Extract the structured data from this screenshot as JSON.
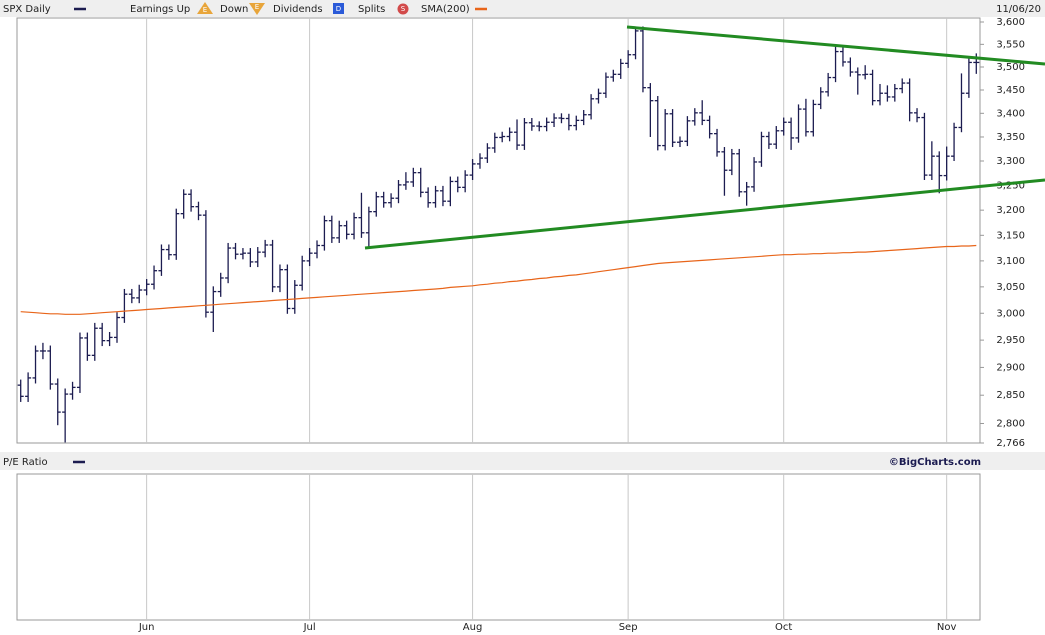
{
  "chart_data": {
    "type": "ohlc",
    "date": "11/06/20",
    "source": "©BigCharts.com",
    "lower_panel": {
      "title": "P/E Ratio"
    },
    "legend": [
      {
        "label": "Earnings Up",
        "icon": "E"
      },
      {
        "label": "Down",
        "icon": "E"
      },
      {
        "label": "Dividends",
        "icon": "D"
      },
      {
        "label": "Splits",
        "icon": "S"
      }
    ],
    "log_scale": true,
    "ylim": [
      2766,
      3600
    ],
    "yticks": [
      {
        "value": 2766,
        "label": "2,766"
      },
      {
        "value": 2800,
        "label": "2,800"
      },
      {
        "value": 2850,
        "label": "2,850"
      },
      {
        "value": 2900,
        "label": "2,900"
      },
      {
        "value": 2950,
        "label": "2,950"
      },
      {
        "value": 3000,
        "label": "3,000"
      },
      {
        "value": 3050,
        "label": "3,050"
      },
      {
        "value": 3100,
        "label": "3,100"
      },
      {
        "value": 3150,
        "label": "3,150"
      },
      {
        "value": 3200,
        "label": "3,200"
      },
      {
        "value": 3250,
        "label": "3,250"
      },
      {
        "value": 3300,
        "label": "3,300"
      },
      {
        "value": 3350,
        "label": "3,350"
      },
      {
        "value": 3400,
        "label": "3,400"
      },
      {
        "value": 3450,
        "label": "3,450"
      },
      {
        "value": 3500,
        "label": "3,500"
      },
      {
        "value": 3550,
        "label": "3,550"
      },
      {
        "value": 3600,
        "label": "3,600"
      }
    ],
    "categories": [
      null,
      null,
      null,
      null,
      null,
      null,
      null,
      null,
      null,
      null,
      null,
      null,
      null,
      null,
      null,
      null,
      null,
      "Jun",
      null,
      null,
      null,
      null,
      null,
      null,
      null,
      null,
      null,
      null,
      null,
      null,
      null,
      null,
      null,
      null,
      null,
      null,
      null,
      null,
      null,
      "Jul",
      null,
      null,
      null,
      null,
      null,
      null,
      null,
      null,
      null,
      null,
      null,
      null,
      null,
      null,
      null,
      null,
      null,
      null,
      null,
      null,
      null,
      "Aug",
      null,
      null,
      null,
      null,
      null,
      null,
      null,
      null,
      null,
      null,
      null,
      null,
      null,
      null,
      null,
      null,
      null,
      null,
      null,
      null,
      "Sep",
      null,
      null,
      null,
      null,
      null,
      null,
      null,
      null,
      null,
      null,
      null,
      null,
      null,
      null,
      null,
      null,
      null,
      null,
      null,
      null,
      "Oct",
      null,
      null,
      null,
      null,
      null,
      null,
      null,
      null,
      null,
      null,
      null,
      null,
      null,
      null,
      null,
      null,
      null,
      null,
      null,
      null,
      null,
      "Nov",
      null,
      null,
      null,
      null
    ],
    "series": [
      {
        "name": "SPX Daily",
        "color": "#1c1c50",
        "open": [
          2868,
          2848,
          2881,
          2930,
          2930,
          2870,
          2820,
          2852,
          2864,
          2954,
          2922,
          2972,
          2949,
          2955,
          2992,
          3036,
          3029,
          3044,
          3055,
          3081,
          3122,
          3112,
          3193,
          3232,
          3207,
          3190,
          3002,
          3041,
          3067,
          3125,
          3113,
          3115,
          3098,
          3117,
          3131,
          3050,
          3083,
          3009,
          3053,
          3100,
          3115,
          3130,
          3179,
          3145,
          3169,
          3152,
          3185,
          3155,
          3197,
          3227,
          3215,
          3224,
          3251,
          3257,
          3276,
          3236,
          3215,
          3239,
          3218,
          3258,
          3246,
          3271,
          3294,
          3306,
          3327,
          3349,
          3351,
          3360,
          3333,
          3380,
          3373,
          3372,
          3381,
          3390,
          3389,
          3374,
          3385,
          3397,
          3431,
          3443,
          3478,
          3484,
          3508,
          3527,
          3580,
          3455,
          3427,
          3332,
          3399,
          3339,
          3341,
          3384,
          3401,
          3385,
          3357,
          3319,
          3281,
          3315,
          3237,
          3247,
          3298,
          3351,
          3335,
          3363,
          3381,
          3348,
          3409,
          3361,
          3419,
          3446,
          3477,
          3534,
          3511,
          3489,
          3483,
          3484,
          3427,
          3443,
          3435,
          3453,
          3465,
          3401,
          3391,
          3271,
          3310,
          3270,
          3310,
          3370,
          3443,
          3510
        ],
        "high": [
          2878,
          2891,
          2940,
          2945,
          2940,
          2880,
          2862,
          2874,
          2964,
          2964,
          2982,
          2982,
          2965,
          3002,
          3046,
          3046,
          3054,
          3065,
          3091,
          3132,
          3132,
          3203,
          3242,
          3242,
          3217,
          3200,
          3051,
          3077,
          3135,
          3135,
          3125,
          3125,
          3127,
          3141,
          3141,
          3093,
          3093,
          3063,
          3110,
          3125,
          3140,
          3189,
          3189,
          3179,
          3179,
          3195,
          3235,
          3207,
          3237,
          3237,
          3234,
          3261,
          3277,
          3286,
          3286,
          3246,
          3249,
          3249,
          3268,
          3268,
          3281,
          3304,
          3316,
          3337,
          3359,
          3361,
          3370,
          3387,
          3390,
          3390,
          3383,
          3391,
          3400,
          3400,
          3399,
          3395,
          3407,
          3441,
          3453,
          3488,
          3494,
          3518,
          3537,
          3588,
          3590,
          3465,
          3437,
          3409,
          3409,
          3351,
          3394,
          3411,
          3428,
          3395,
          3367,
          3329,
          3325,
          3325,
          3257,
          3308,
          3361,
          3361,
          3373,
          3391,
          3391,
          3419,
          3431,
          3429,
          3456,
          3487,
          3549,
          3544,
          3521,
          3499,
          3504,
          3494,
          3463,
          3460,
          3463,
          3475,
          3475,
          3411,
          3401,
          3341,
          3320,
          3330,
          3380,
          3486,
          3520,
          3530
        ],
        "low": [
          2838,
          2838,
          2871,
          2915,
          2860,
          2797,
          2767,
          2842,
          2854,
          2912,
          2912,
          2939,
          2939,
          2945,
          2982,
          3019,
          3019,
          3034,
          3045,
          3071,
          3102,
          3102,
          3183,
          3197,
          3180,
          2992,
          2965,
          3031,
          3057,
          3103,
          3103,
          3088,
          3088,
          3107,
          3040,
          3040,
          2999,
          2999,
          3043,
          3090,
          3105,
          3120,
          3135,
          3135,
          3142,
          3142,
          3145,
          3127,
          3187,
          3205,
          3205,
          3214,
          3241,
          3247,
          3226,
          3205,
          3205,
          3208,
          3208,
          3236,
          3236,
          3261,
          3284,
          3296,
          3317,
          3339,
          3341,
          3323,
          3323,
          3363,
          3362,
          3362,
          3371,
          3379,
          3364,
          3364,
          3375,
          3387,
          3421,
          3433,
          3468,
          3474,
          3498,
          3517,
          3445,
          3350,
          3322,
          3322,
          3329,
          3329,
          3331,
          3374,
          3375,
          3347,
          3309,
          3229,
          3271,
          3227,
          3209,
          3237,
          3288,
          3325,
          3325,
          3353,
          3323,
          3338,
          3351,
          3351,
          3409,
          3436,
          3467,
          3501,
          3479,
          3440,
          3473,
          3417,
          3417,
          3425,
          3425,
          3443,
          3383,
          3381,
          3261,
          3261,
          3234,
          3260,
          3300,
          3360,
          3433,
          3485
        ],
        "close": [
          2848,
          2881,
          2930,
          2930,
          2870,
          2820,
          2852,
          2864,
          2954,
          2922,
          2972,
          2949,
          2955,
          2992,
          3036,
          3029,
          3044,
          3055,
          3081,
          3122,
          3112,
          3193,
          3232,
          3207,
          3190,
          3002,
          3041,
          3067,
          3125,
          3113,
          3115,
          3098,
          3117,
          3131,
          3050,
          3083,
          3009,
          3053,
          3100,
          3115,
          3130,
          3179,
          3145,
          3169,
          3152,
          3185,
          3155,
          3197,
          3227,
          3215,
          3224,
          3251,
          3257,
          3276,
          3236,
          3215,
          3239,
          3218,
          3258,
          3246,
          3271,
          3294,
          3306,
          3327,
          3349,
          3351,
          3360,
          3333,
          3380,
          3373,
          3372,
          3381,
          3390,
          3389,
          3374,
          3385,
          3397,
          3431,
          3443,
          3478,
          3484,
          3508,
          3527,
          3580,
          3455,
          3427,
          3332,
          3399,
          3339,
          3341,
          3384,
          3401,
          3385,
          3357,
          3319,
          3281,
          3315,
          3237,
          3247,
          3298,
          3351,
          3335,
          3363,
          3381,
          3348,
          3409,
          3361,
          3419,
          3446,
          3477,
          3534,
          3511,
          3489,
          3483,
          3484,
          3427,
          3443,
          3435,
          3453,
          3465,
          3401,
          3391,
          3271,
          3310,
          3270,
          3310,
          3370,
          3443,
          3510,
          3510
        ]
      },
      {
        "name": "SMA(200)",
        "color": "#e8651a",
        "values": [
          3003,
          3002,
          3001,
          3000,
          2999,
          2999,
          2998,
          2998,
          2998,
          2999,
          3000,
          3001,
          3002,
          3003,
          3004,
          3005,
          3006,
          3007,
          3008,
          3009,
          3010,
          3011,
          3012,
          3013,
          3014,
          3015,
          3016,
          3017,
          3018,
          3019,
          3020,
          3021,
          3022,
          3023,
          3024,
          3025,
          3026,
          3027,
          3028,
          3029,
          3030,
          3031,
          3032,
          3033,
          3034,
          3035,
          3036,
          3037,
          3038,
          3039,
          3040,
          3041,
          3042,
          3043,
          3044,
          3045,
          3046,
          3047,
          3049,
          3050,
          3051,
          3052,
          3054,
          3055,
          3057,
          3058,
          3060,
          3061,
          3063,
          3064,
          3066,
          3067,
          3069,
          3070,
          3072,
          3073,
          3075,
          3077,
          3079,
          3081,
          3083,
          3085,
          3087,
          3089,
          3091,
          3093,
          3095,
          3096,
          3097,
          3098,
          3099,
          3100,
          3101,
          3102,
          3103,
          3104,
          3105,
          3106,
          3107,
          3108,
          3109,
          3110,
          3111,
          3112,
          3112,
          3113,
          3113,
          3114,
          3114,
          3115,
          3115,
          3116,
          3116,
          3117,
          3117,
          3118,
          3119,
          3120,
          3121,
          3122,
          3123,
          3124,
          3125,
          3126,
          3127,
          3128,
          3128,
          3129,
          3129,
          3130
        ]
      }
    ]
  }
}
